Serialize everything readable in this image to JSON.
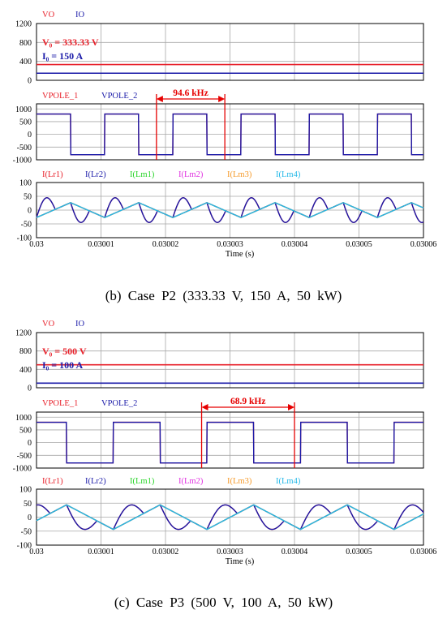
{
  "captions": {
    "p2": "(b)  Case  P2  (333.33  V,  150  A,  50  kW)",
    "p3": "(c)  Case  P3  (500  V,  100  A,  50  kW)"
  },
  "colors": {
    "VO": "#e8202a",
    "IO": "#1a1aa8",
    "VPOLE_1": "#e8202a",
    "VPOLE_2": "#1a1aa8",
    "I(Lr1)": "#e8202a",
    "I(Lr2)": "#1a1aa8",
    "I(Lm1)": "#26d426",
    "I(Lm2)": "#e030e0",
    "I(Lm3)": "#f59a2a",
    "I(Lm4)": "#22b8e8",
    "annotation": "#e60000",
    "grid": "#a8a8a8"
  },
  "chart_data": [
    {
      "id": "p2-output",
      "type": "line",
      "legend": [
        "VO",
        "IO"
      ],
      "yticks": [
        0,
        400,
        800,
        1200
      ],
      "ylim": [
        0,
        1200
      ],
      "xlim": [
        0.03,
        0.03006
      ],
      "annotations": [
        {
          "text": "V₀ = 333.33 V",
          "color": "#e8202a"
        },
        {
          "text": "I₀ = 150 A",
          "color": "#1a1aa8"
        }
      ],
      "series": [
        {
          "name": "VO",
          "type": "const",
          "value": 333.33
        },
        {
          "name": "IO",
          "type": "const",
          "value": 150
        }
      ]
    },
    {
      "id": "p2-pole",
      "type": "line",
      "legend": [
        "VPOLE_1",
        "VPOLE_2"
      ],
      "yticks": [
        -1000,
        -500,
        0,
        500,
        1000
      ],
      "ylim": [
        -1000,
        1200
      ],
      "xlim": [
        0.03,
        0.03006
      ],
      "freq_label": "94.6 kHz",
      "freq_marker": [
        0.0300186,
        0.0300292
      ],
      "series": [
        {
          "name": "VPOLE_1",
          "type": "square",
          "high": 800,
          "low": -800,
          "period": 1.057e-05,
          "high_start": 0.03,
          "duty": 0.5,
          "rise": 3e-07
        }
      ]
    },
    {
      "id": "p2-current",
      "type": "line",
      "legend": [
        "I(Lr1)",
        "I(Lr2)",
        "I(Lm1)",
        "I(Lm2)",
        "I(Lm3)",
        "I(Lm4)"
      ],
      "yticks": [
        -100,
        -50,
        0,
        50,
        100
      ],
      "ylim": [
        -100,
        100
      ],
      "xlim": [
        0.03,
        0.03006
      ],
      "xticks": [
        0.03,
        0.03001,
        0.03002,
        0.03003,
        0.03004,
        0.03005,
        0.03006
      ],
      "xtick_labels": [
        "0.03",
        "0.03001",
        "0.03002",
        "0.03003",
        "0.03004",
        "0.03005",
        "0.03006"
      ],
      "xlabel": "Time (s)",
      "series": [
        {
          "name": "I(Lr2)",
          "type": "resonant",
          "amp": 58,
          "period": 1.057e-05,
          "phase_start": 0.03,
          "magnetizing": 27,
          "tau_frac": 0.55
        },
        {
          "name": "I(Lm4)",
          "type": "triangle",
          "amp": 27,
          "period": 1.057e-05,
          "phase_start": 0.03
        }
      ]
    },
    {
      "id": "p3-output",
      "type": "line",
      "legend": [
        "VO",
        "IO"
      ],
      "yticks": [
        0,
        400,
        800,
        1200
      ],
      "ylim": [
        0,
        1200
      ],
      "xlim": [
        0.03,
        0.03006
      ],
      "annotations": [
        {
          "text": "V₀ = 500 V",
          "color": "#e8202a"
        },
        {
          "text": "I₀ = 100 A",
          "color": "#1a1aa8"
        }
      ],
      "series": [
        {
          "name": "VO",
          "type": "const",
          "value": 500
        },
        {
          "name": "IO",
          "type": "const",
          "value": 100
        }
      ]
    },
    {
      "id": "p3-pole",
      "type": "line",
      "legend": [
        "VPOLE_1",
        "VPOLE_2"
      ],
      "yticks": [
        -1000,
        -500,
        0,
        500,
        1000
      ],
      "ylim": [
        -1000,
        1200
      ],
      "xlim": [
        0.03,
        0.03006
      ],
      "freq_label": "68.9 kHz",
      "freq_marker": [
        0.0300256,
        0.03004
      ],
      "series": [
        {
          "name": "VPOLE_1",
          "type": "square",
          "high": 800,
          "low": -800,
          "period": 1.451e-05,
          "high_start": 0.0299974,
          "duty": 0.5,
          "rise": 3e-07
        }
      ]
    },
    {
      "id": "p3-current",
      "type": "line",
      "legend": [
        "I(Lr1)",
        "I(Lr2)",
        "I(Lm1)",
        "I(Lm2)",
        "I(Lm3)",
        "I(Lm4)"
      ],
      "yticks": [
        -100,
        -50,
        0,
        50,
        100
      ],
      "ylim": [
        -100,
        100
      ],
      "xlim": [
        0.03,
        0.03006
      ],
      "xticks": [
        0.03,
        0.03001,
        0.03002,
        0.03003,
        0.03004,
        0.03005,
        0.03006
      ],
      "xtick_labels": [
        "0.03",
        "0.03001",
        "0.03002",
        "0.03003",
        "0.03004",
        "0.03005",
        "0.03006"
      ],
      "xlabel": "Time (s)",
      "series": [
        {
          "name": "I(Lr2)",
          "type": "resonant",
          "amp": 58,
          "period": 1.451e-05,
          "phase_start": 0.0299974,
          "magnetizing": 44,
          "tau_frac": 0.65
        },
        {
          "name": "I(Lm4)",
          "type": "triangle",
          "amp": 44,
          "period": 1.451e-05,
          "phase_start": 0.0299974
        }
      ]
    }
  ]
}
